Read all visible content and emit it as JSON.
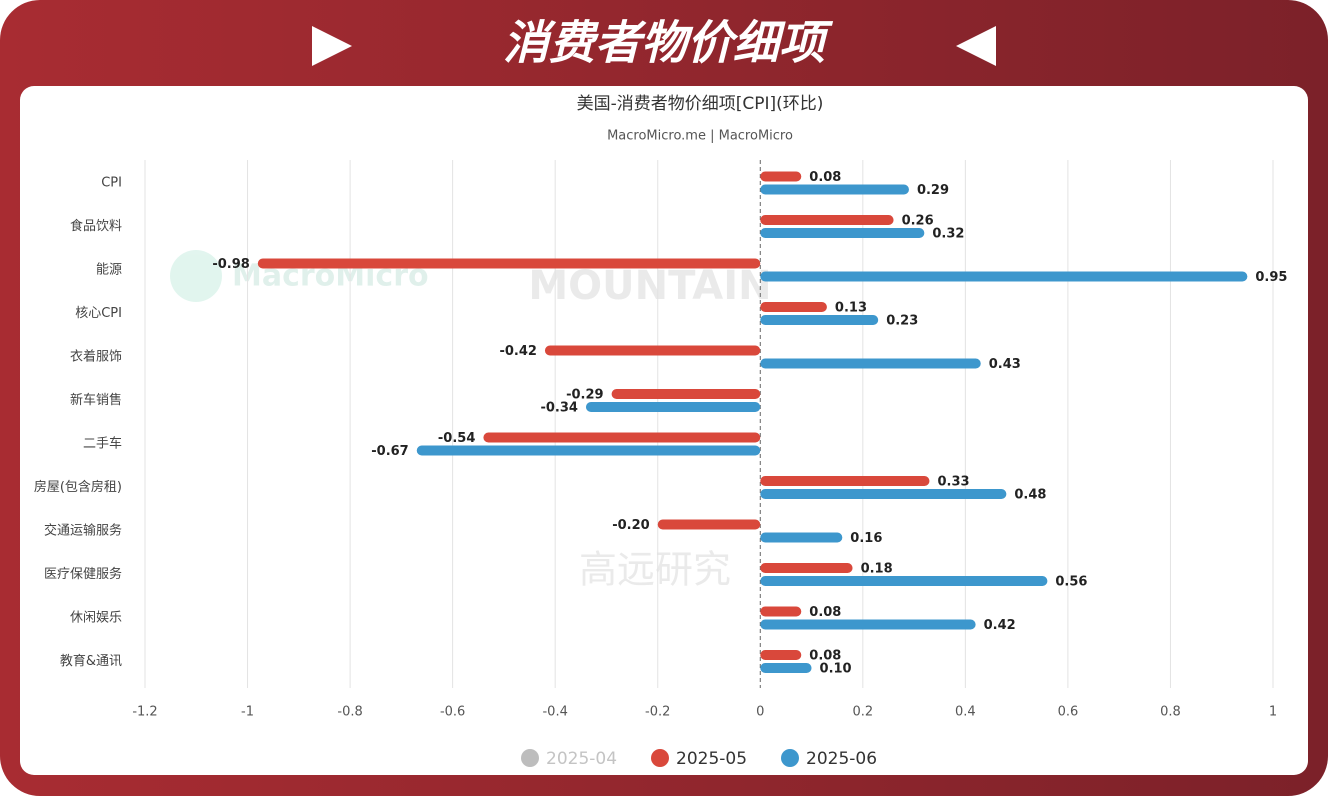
{
  "banner": {
    "title": "消费者物价细项"
  },
  "chart_data": {
    "type": "hbar",
    "title": "美国-消费者物价细项[CPI](环比)",
    "subtitle": "MacroMicro.me | MacroMicro",
    "watermarks": [
      "MacroMicro",
      "MOUNTAIN",
      "高远研究"
    ],
    "categories": [
      "CPI",
      "食品饮料",
      "能源",
      "核心CPI",
      "衣着服饰",
      "新车销售",
      "二手车",
      "房屋(包含房租)",
      "交通运输服务",
      "医疗保健服务",
      "休闲娱乐",
      "教育&通讯"
    ],
    "series": [
      {
        "name": "2025-04",
        "color": "#bdbdbd",
        "hidden": true,
        "values": [
          null,
          null,
          null,
          null,
          null,
          null,
          null,
          null,
          null,
          null,
          null,
          null
        ]
      },
      {
        "name": "2025-05",
        "color": "#d9483b",
        "values": [
          0.08,
          0.26,
          -0.98,
          0.13,
          -0.42,
          -0.29,
          -0.54,
          0.33,
          -0.2,
          0.18,
          0.08,
          0.08
        ],
        "value_labels": [
          "0.08",
          "0.26",
          "-0.98",
          "0.13",
          "-0.42",
          "-0.29",
          "-0.54",
          "0.33",
          "-0.20",
          "0.18",
          "0.08",
          "0.08"
        ]
      },
      {
        "name": "2025-06",
        "color": "#3d97cd",
        "values": [
          0.29,
          0.32,
          0.95,
          0.23,
          0.43,
          -0.34,
          -0.67,
          0.48,
          0.16,
          0.56,
          0.42,
          0.1
        ],
        "value_labels": [
          "0.29",
          "0.32",
          "0.95",
          "0.23",
          "0.43",
          "-0.34",
          "-0.67",
          "0.48",
          "0.16",
          "0.56",
          "0.42",
          "0.10"
        ]
      }
    ],
    "xlim": [
      -1.2,
      1
    ],
    "xticks": [
      -1.2,
      -1,
      -0.8,
      -0.6,
      -0.4,
      -0.2,
      0,
      0.2,
      0.4,
      0.6,
      0.8,
      1
    ],
    "grid": true,
    "legend": "bottom"
  }
}
